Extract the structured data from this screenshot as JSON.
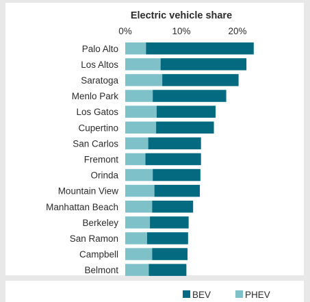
{
  "chart_data": {
    "type": "bar",
    "orientation": "horizontal",
    "stacked": true,
    "title": "Electric vehicle share",
    "xlim": [
      0,
      0.22
    ],
    "x_ticks": [
      {
        "value": 0,
        "label": "0%"
      },
      {
        "value": 0.1,
        "label": "10%"
      },
      {
        "value": 0.2,
        "label": "20%"
      }
    ],
    "categories": [
      "Palo Alto",
      "Los Altos",
      "Saratoga",
      "Menlo Park",
      "Los Gatos",
      "Cupertino",
      "San Carlos",
      "Fremont",
      "Orinda",
      "Mountain View",
      "Manhattan Beach",
      "Berkeley",
      "San Ramon",
      "Campbell",
      "Belmont"
    ],
    "series": [
      {
        "name": "PHEV",
        "color": "#7fc1c9",
        "values": [
          0.037,
          0.063,
          0.066,
          0.049,
          0.056,
          0.055,
          0.041,
          0.036,
          0.049,
          0.052,
          0.048,
          0.044,
          0.039,
          0.048,
          0.042
        ]
      },
      {
        "name": "BEV",
        "color": "#036a80",
        "values": [
          0.192,
          0.153,
          0.136,
          0.131,
          0.105,
          0.103,
          0.094,
          0.099,
          0.085,
          0.081,
          0.073,
          0.069,
          0.073,
          0.063,
          0.067
        ]
      }
    ],
    "legend": {
      "position": "bottom-right",
      "order": [
        "BEV",
        "PHEV"
      ]
    },
    "grid": false
  }
}
